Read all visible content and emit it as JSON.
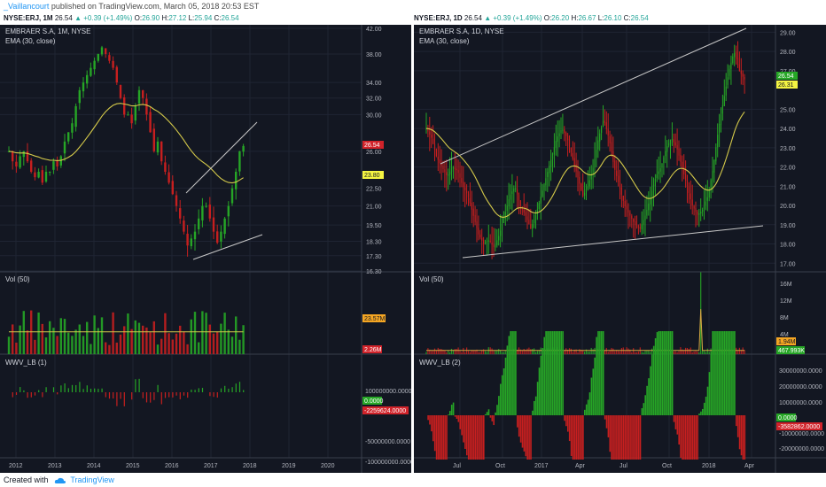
{
  "header": {
    "user": "_Vaillancourt",
    "published_text": "published on TradingView.com, March 05, 2018 20:53 EST"
  },
  "left": {
    "ticker": "NYSE:ERJ, 1M",
    "last": "26.54",
    "change": "▲ +0.39 (+1.49%)",
    "o_label": "O:",
    "o": "26.90",
    "h_label": "H:",
    "h": "27.12",
    "l_label": "L:",
    "l": "25.94",
    "c_label": "C:",
    "c": "26.54",
    "title": "EMBRAER S.A, 1M, NYSE",
    "ema_label": "EMA (30, close)",
    "vol_label": "Vol (50)",
    "wwv_label": "WWV_LB (1)",
    "price_ticks": [
      "42.00",
      "38.00",
      "34.00",
      "32.00",
      "30.00",
      "26.00",
      "22.50",
      "21.00",
      "19.50",
      "18.30",
      "17.30",
      "16.30"
    ],
    "price_badges": [
      "26.54",
      "23.80"
    ],
    "vol_ticks": [
      "40M",
      "20M"
    ],
    "vol_badges": [
      "23.57M",
      "2.26M"
    ],
    "wwv_ticks": [
      "100000000.0000",
      "50000000.0000",
      "-50000000.0000",
      "-100000000.0000",
      "-150000000.0000"
    ],
    "wwv_badges": [
      "0.0000",
      "-2259624.0000"
    ],
    "x_ticks": [
      "2012",
      "2013",
      "2014",
      "2015",
      "2016",
      "2017",
      "2018",
      "2019",
      "2020"
    ]
  },
  "right": {
    "ticker": "NYSE:ERJ, 1D",
    "last": "26.54",
    "change": "▲ +0.39 (+1.49%)",
    "o_label": "O:",
    "o": "26.20",
    "h_label": "H:",
    "h": "26.67",
    "l_label": "L:",
    "l": "26.10",
    "c_label": "C:",
    "c": "26.54",
    "title": "EMBRAER S.A, 1D, NYSE",
    "ema_label": "EMA (30, close)",
    "vol_label": "Vol (50)",
    "wwv_label": "WWV_LB (2)",
    "price_ticks": [
      "29.00",
      "28.00",
      "27.00",
      "25.00",
      "24.00",
      "23.00",
      "22.00",
      "21.00",
      "20.00",
      "19.00",
      "18.00",
      "17.00"
    ],
    "price_badges": [
      "26.54",
      "26.31"
    ],
    "vol_ticks": [
      "16M",
      "12M",
      "8M",
      "4M"
    ],
    "vol_badges": [
      "1.94M",
      "467.993K"
    ],
    "wwv_ticks": [
      "30000000.0000",
      "20000000.0000",
      "10000000.0000",
      "-10000000.0000",
      "-20000000.0000"
    ],
    "wwv_badges": [
      "0.0000",
      "-3582862.0000"
    ],
    "x_ticks": [
      "Jul",
      "Oct",
      "2017",
      "Apr",
      "Jul",
      "Oct",
      "2018",
      "Apr"
    ]
  },
  "footer": {
    "created_with": "Created with",
    "brand": "TradingView"
  },
  "chart_data": [
    {
      "type": "line",
      "title": "EMBRAER S.A, 1M, NYSE",
      "x": [
        "2012",
        "2013",
        "2014",
        "2015",
        "2016",
        "2017",
        "2018"
      ],
      "series": [
        {
          "name": "ERJ",
          "values": [
            26.0,
            24.0,
            33.0,
            37.0,
            26.0,
            18.5,
            26.54
          ]
        },
        {
          "name": "EMA (30, close)",
          "values": [
            26.5,
            27.0,
            32.0,
            33.5,
            29.0,
            24.0,
            23.8
          ]
        }
      ],
      "ylim": [
        16.3,
        42.0
      ],
      "log_scale": true
    },
    {
      "type": "line",
      "title": "EMBRAER S.A, 1D, NYSE",
      "x": [
        "Jul",
        "Oct",
        "2017",
        "Apr",
        "Jul",
        "Oct",
        "2018",
        "Apr"
      ],
      "series": [
        {
          "name": "ERJ",
          "values": [
            22.0,
            18.0,
            20.0,
            23.5,
            19.0,
            21.0,
            27.0,
            26.54
          ]
        },
        {
          "name": "EMA (30, close)",
          "values": [
            22.5,
            19.0,
            20.0,
            22.5,
            20.0,
            21.5,
            25.0,
            26.31
          ]
        }
      ],
      "ylim": [
        16.5,
        29.0
      ]
    }
  ]
}
